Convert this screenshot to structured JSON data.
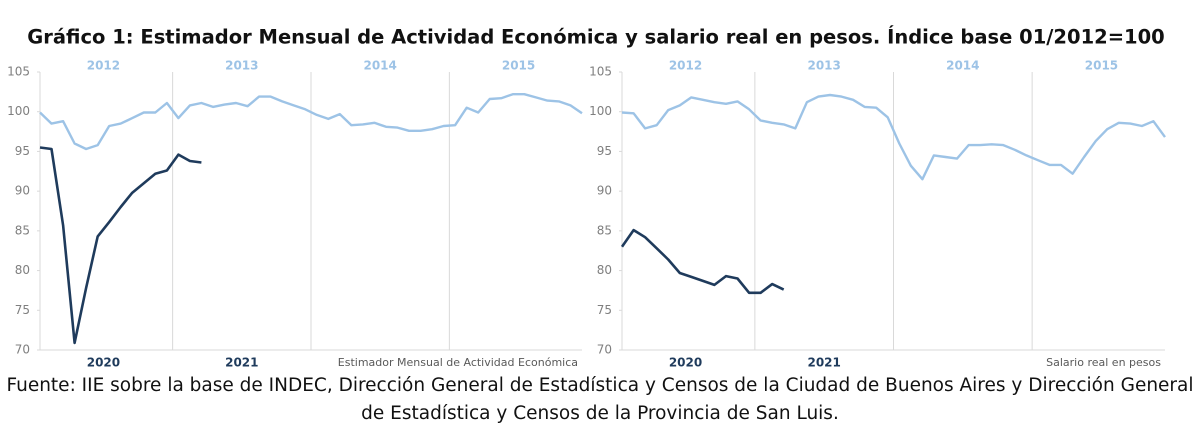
{
  "title": "Gráfico 1: Estimador Mensual de Actividad Económica y salario real en pesos. Índice base 01/2012=100",
  "source": "Fuente: IIE sobre la base de INDEC, Dirección General de Estadística y Censos de la Ciudad de Buenos Aires y Dirección General de Estadística y Censos de la Provincia de San Luis.",
  "chart_data": [
    {
      "type": "line",
      "label": "Estimador Mensual de Actividad Económica",
      "x_top": [
        "2012",
        "2013",
        "2014",
        "2015"
      ],
      "x_bottom": [
        "2020",
        "2021"
      ],
      "ylim": [
        70,
        105
      ],
      "yticks": [
        70,
        75,
        80,
        85,
        90,
        95,
        100,
        105
      ],
      "series": [
        {
          "color": "#9dc3e6",
          "x_axis": "top",
          "values": [
            99.9,
            98.5,
            98.8,
            96.0,
            95.3,
            95.8,
            98.2,
            98.5,
            99.2,
            99.9,
            99.9,
            101.1,
            99.2,
            100.8,
            101.1,
            100.6,
            100.9,
            101.1,
            100.7,
            101.9,
            101.9,
            101.3,
            100.8,
            100.3,
            99.6,
            99.1,
            99.7,
            98.3,
            98.4,
            98.6,
            98.1,
            98.0,
            97.6,
            97.6,
            97.8,
            98.2,
            98.3,
            100.5,
            99.9,
            101.6,
            101.7,
            102.2,
            102.2,
            101.8,
            101.4,
            101.3,
            100.8,
            99.8
          ]
        },
        {
          "color": "#1f3b5c",
          "x_axis": "bottom",
          "values": [
            95.5,
            95.3,
            85.7,
            70.9,
            77.8,
            84.3,
            86.1,
            88.0,
            89.8,
            91.0,
            92.2,
            92.6,
            94.6,
            93.8,
            93.6
          ]
        }
      ]
    },
    {
      "type": "line",
      "label": "Salario real en pesos",
      "x_top": [
        "2012",
        "2013",
        "2014",
        "2015"
      ],
      "x_bottom": [
        "2020",
        "2021"
      ],
      "ylim": [
        70,
        105
      ],
      "yticks": [
        70,
        75,
        80,
        85,
        90,
        95,
        100,
        105
      ],
      "series": [
        {
          "color": "#9dc3e6",
          "x_axis": "top",
          "values": [
            99.9,
            99.8,
            97.9,
            98.3,
            100.2,
            100.8,
            101.8,
            101.5,
            101.2,
            101.0,
            101.3,
            100.3,
            98.9,
            98.6,
            98.4,
            97.9,
            101.2,
            101.9,
            102.1,
            101.9,
            101.5,
            100.6,
            100.5,
            99.3,
            96.0,
            93.2,
            91.5,
            94.5,
            94.3,
            94.1,
            95.8,
            95.8,
            95.9,
            95.8,
            95.2,
            94.5,
            93.9,
            93.3,
            93.3,
            92.2,
            94.3,
            96.3,
            97.8,
            98.6,
            98.5,
            98.2,
            98.8,
            96.8
          ]
        },
        {
          "color": "#1f3b5c",
          "x_axis": "bottom",
          "values": [
            83.0,
            85.1,
            84.2,
            82.8,
            81.4,
            79.7,
            79.2,
            78.7,
            78.2,
            79.3,
            79.0,
            77.2,
            77.2,
            78.3,
            77.6
          ]
        }
      ]
    }
  ]
}
